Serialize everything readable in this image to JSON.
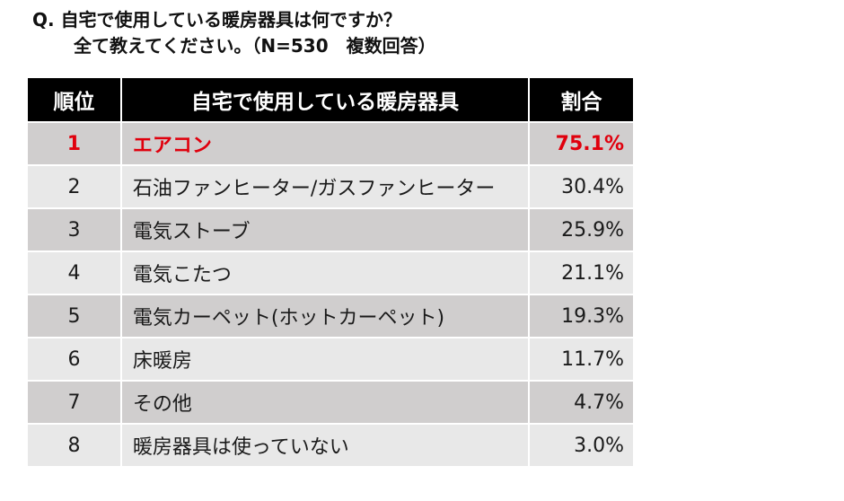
{
  "question": {
    "line1": "Q. 自宅で使用している暖房器具は何ですか？",
    "line2": "全て教えてください。（N=530　複数回答）"
  },
  "chart_data": {
    "type": "table",
    "columns": [
      "順位",
      "自宅で使用している暖房器具",
      "割合"
    ],
    "rows": [
      {
        "rank": "1",
        "item": "エアコン",
        "pct": "75.1%"
      },
      {
        "rank": "2",
        "item": "石油ファンヒーター/ガスファンヒーター",
        "pct": "30.4%"
      },
      {
        "rank": "3",
        "item": "電気ストーブ",
        "pct": "25.9%"
      },
      {
        "rank": "4",
        "item": "電気こたつ",
        "pct": "21.1%"
      },
      {
        "rank": "5",
        "item": "電気カーペット(ホットカーペット)",
        "pct": "19.3%"
      },
      {
        "rank": "6",
        "item": "床暖房",
        "pct": "11.7%"
      },
      {
        "rank": "7",
        "item": "その他",
        "pct": "4.7%"
      },
      {
        "rank": "8",
        "item": "暖房器具は使っていない",
        "pct": "3.0%"
      }
    ],
    "highlight_color": "#e0000d",
    "header_color": "#000000"
  }
}
